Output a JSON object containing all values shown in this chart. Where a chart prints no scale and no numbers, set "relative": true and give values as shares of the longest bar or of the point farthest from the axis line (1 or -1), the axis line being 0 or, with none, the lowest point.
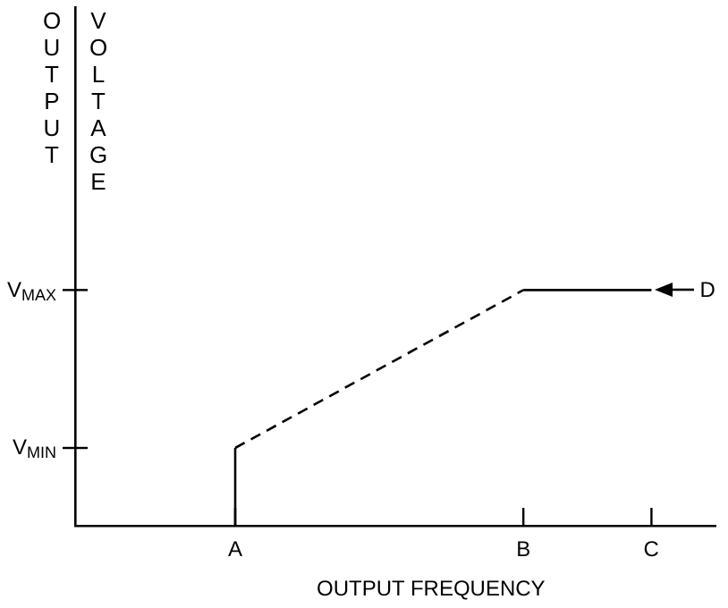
{
  "chart_data": {
    "type": "line",
    "xlabel": "OUTPUT FREQUENCY",
    "ylabel": "OUTPUT VOLTAGE",
    "relative": true,
    "categories": [
      null,
      null,
      null,
      null,
      null,
      "A",
      null,
      null,
      null,
      null,
      null,
      null,
      null,
      null,
      "B",
      null,
      null,
      null,
      "C",
      null,
      null
    ],
    "series": [
      {
        "color": "#000000",
        "x": [
          "A",
          "A"
        ],
        "values": [
          0,
          0.33
        ],
        "line_style": "solid"
      },
      {
        "color": "#000000",
        "x": [
          "A",
          "B"
        ],
        "values": [
          0.33,
          1
        ],
        "line_style": "dashed"
      },
      {
        "color": "#000000",
        "x": [
          "B",
          "C"
        ],
        "values": [
          1,
          1
        ],
        "line_style": "solid"
      }
    ],
    "ref_lines": [
      {
        "axis": "y",
        "value": 0.33,
        "label": "V$_{MIN}$"
      },
      {
        "axis": "y",
        "value": 1,
        "label": "V$_{MAX}$"
      }
    ],
    "annotations": [
      {
        "text": "D",
        "x": "C",
        "y": 1
      }
    ],
    "grid": false,
    "legend": false,
    "marker": "none"
  }
}
